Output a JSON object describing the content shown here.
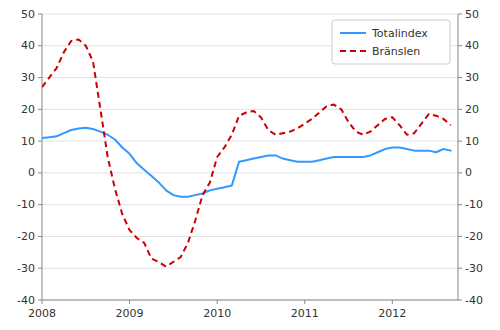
{
  "chart_data": {
    "type": "line",
    "x": [
      2008.0,
      2008.083,
      2008.167,
      2008.25,
      2008.333,
      2008.417,
      2008.5,
      2008.583,
      2008.667,
      2008.75,
      2008.833,
      2008.917,
      2009.0,
      2009.083,
      2009.167,
      2009.25,
      2009.333,
      2009.417,
      2009.5,
      2009.583,
      2009.667,
      2009.75,
      2009.833,
      2009.917,
      2010.0,
      2010.083,
      2010.167,
      2010.25,
      2010.333,
      2010.417,
      2010.5,
      2010.583,
      2010.667,
      2010.75,
      2010.833,
      2010.917,
      2011.0,
      2011.083,
      2011.167,
      2011.25,
      2011.333,
      2011.417,
      2011.5,
      2011.583,
      2011.667,
      2011.75,
      2011.833,
      2011.917,
      2012.0,
      2012.083,
      2012.167,
      2012.25,
      2012.333,
      2012.417,
      2012.5,
      2012.583,
      2012.667
    ],
    "series": [
      {
        "name": "Totalindex",
        "color": "#3399ff",
        "line_style": "solid",
        "values": [
          11.0,
          11.2,
          11.5,
          12.5,
          13.5,
          14.0,
          14.2,
          13.8,
          13.0,
          12.0,
          10.5,
          8.0,
          6.0,
          3.0,
          1.0,
          -1.0,
          -3.0,
          -5.5,
          -7.0,
          -7.5,
          -7.5,
          -7.0,
          -6.5,
          -5.5,
          -5.0,
          -4.5,
          -4.0,
          3.5,
          4.0,
          4.5,
          5.0,
          5.5,
          5.5,
          4.5,
          4.0,
          3.5,
          3.5,
          3.5,
          4.0,
          4.5,
          5.0,
          5.0,
          5.0,
          5.0,
          5.0,
          5.5,
          6.5,
          7.5,
          8.0,
          8.0,
          7.5,
          7.0,
          7.0,
          7.0,
          6.5,
          7.5,
          7.0
        ]
      },
      {
        "name": "Bränslen",
        "color": "#cc0000",
        "line_style": "dashed",
        "axis": "y2",
        "values": [
          27.0,
          30.0,
          33.0,
          38.0,
          41.5,
          42.0,
          40.0,
          35.0,
          20.0,
          5.0,
          -5.0,
          -13.0,
          -18.0,
          -20.5,
          -22.0,
          -27.0,
          -28.0,
          -29.5,
          -28.0,
          -26.5,
          -22.0,
          -15.0,
          -7.0,
          -3.0,
          5.0,
          8.0,
          12.0,
          18.0,
          19.0,
          19.5,
          17.5,
          13.5,
          12.0,
          12.5,
          13.0,
          14.0,
          15.5,
          17.0,
          19.0,
          21.0,
          21.5,
          20.0,
          16.0,
          13.0,
          12.0,
          13.0,
          15.0,
          17.0,
          17.5,
          15.0,
          12.0,
          12.5,
          15.5,
          18.5,
          18.0,
          17.0,
          15.0
        ]
      }
    ],
    "xlim": [
      2008.0,
      2012.75
    ],
    "xticks": [
      2008,
      2009,
      2010,
      2011,
      2012
    ],
    "ylim": [
      -40,
      50
    ],
    "yticks": [
      -40,
      -30,
      -20,
      -10,
      0,
      10,
      20,
      30,
      40,
      50
    ],
    "y2lim": [
      -40,
      50
    ],
    "y2ticks": [
      -40,
      -30,
      -20,
      -10,
      0,
      10,
      20,
      30,
      40,
      50
    ],
    "grid": true,
    "legend": "upper right"
  }
}
